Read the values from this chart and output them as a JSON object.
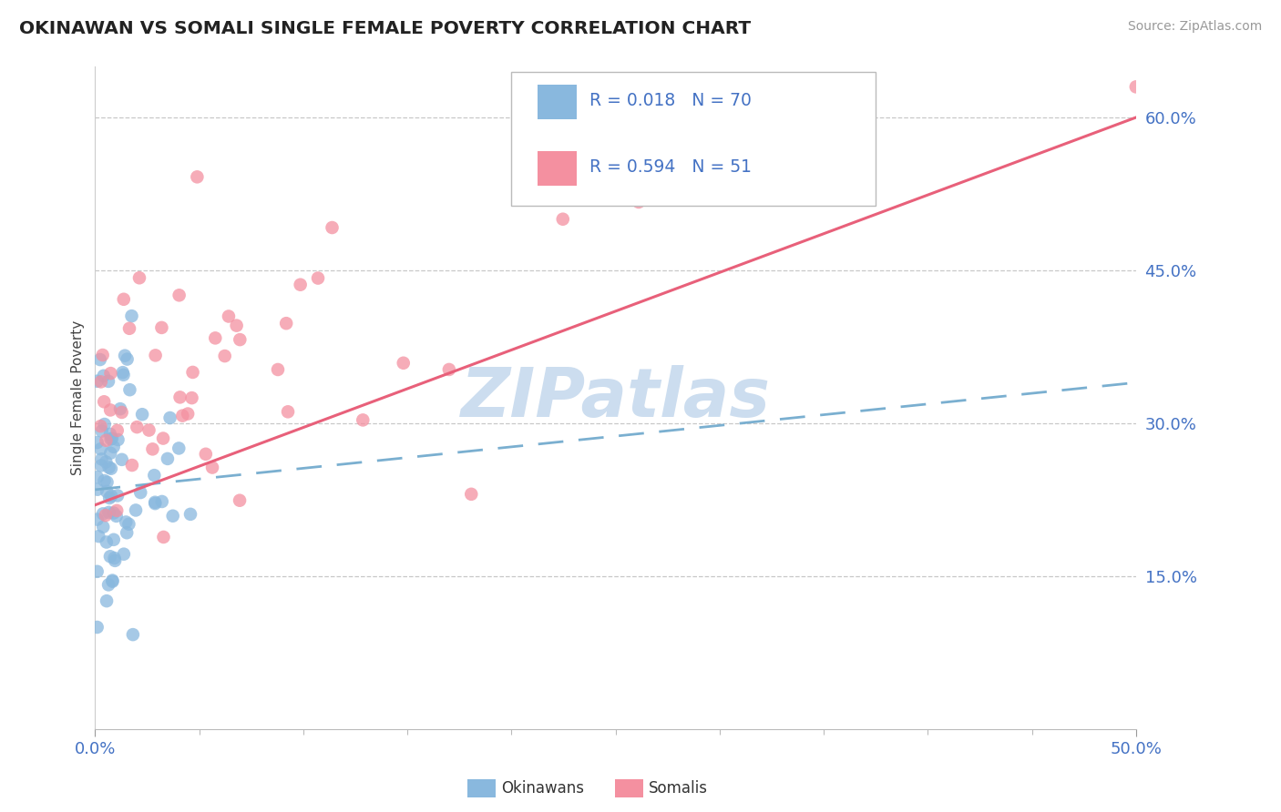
{
  "title": "OKINAWAN VS SOMALI SINGLE FEMALE POVERTY CORRELATION CHART",
  "source": "Source: ZipAtlas.com",
  "ylabel": "Single Female Poverty",
  "ytick_labels": [
    "15.0%",
    "30.0%",
    "45.0%",
    "60.0%"
  ],
  "ytick_values": [
    0.15,
    0.3,
    0.45,
    0.6
  ],
  "xlim": [
    0.0,
    0.5
  ],
  "ylim": [
    0.0,
    0.65
  ],
  "okinawan_color": "#89b8de",
  "somali_color": "#f490a0",
  "trend_okinawan_color": "#7aafd0",
  "trend_somali_color": "#e8607a",
  "watermark": "ZIPatlas",
  "watermark_color": "#ccddef",
  "background_color": "#ffffff",
  "R_okinawan": 0.018,
  "N_okinawan": 70,
  "R_somali": 0.594,
  "N_somali": 51,
  "trend_ok_x0": 0.0,
  "trend_ok_y0": 0.235,
  "trend_ok_x1": 0.5,
  "trend_ok_y1": 0.34,
  "trend_som_x0": 0.0,
  "trend_som_y0": 0.22,
  "trend_som_x1": 0.5,
  "trend_som_y1": 0.6
}
